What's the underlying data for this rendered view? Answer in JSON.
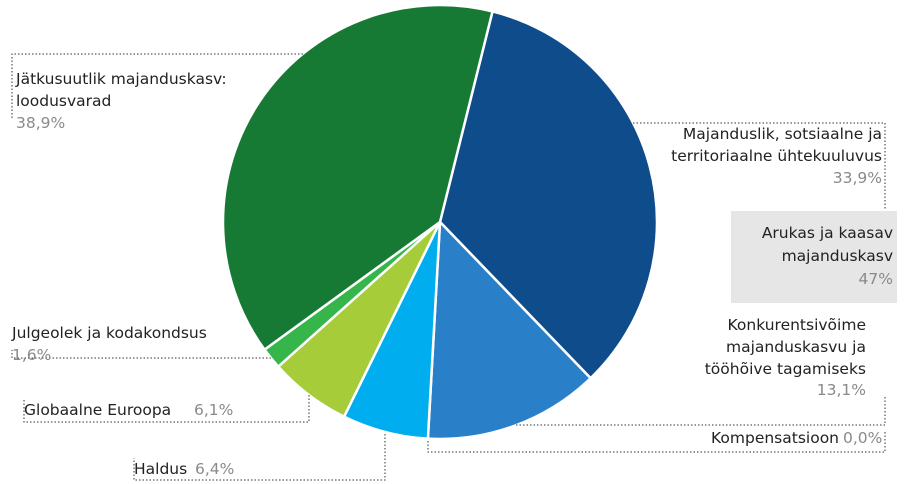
{
  "chart_data": {
    "type": "pie",
    "title": "",
    "slices": [
      {
        "name_lines": [
          "Majanduslik, sotsiaalne ja",
          "territoriaalne ühtekuuluvus"
        ],
        "percent_label": "33,9%",
        "value": 33.9,
        "color": "#0e4c8c"
      },
      {
        "name_lines": [
          "Konkurentsivõime",
          "majanduskasvu ja",
          "tööhõive tagamiseks"
        ],
        "percent_label": "13,1%",
        "value": 13.1,
        "color": "#2980c9"
      },
      {
        "name_lines": [
          "Kompensatsioon"
        ],
        "percent_label": "0,0%",
        "value": 0.0,
        "color": "#2980c9"
      },
      {
        "name_lines": [
          "Haldus"
        ],
        "percent_label": "6,4%",
        "value": 6.4,
        "color": "#00aeef"
      },
      {
        "name_lines": [
          "Globaalne Euroopa"
        ],
        "percent_label": "6,1%",
        "value": 6.1,
        "color": "#a6cc3a"
      },
      {
        "name_lines": [
          "Julgeolek ja kodakondsus"
        ],
        "percent_label": "1,6%",
        "value": 1.6,
        "color": "#35b54a"
      },
      {
        "name_lines": [
          "Jätkusuutlik majanduskasv:",
          "loodusvarad"
        ],
        "percent_label": "38,9%",
        "value": 38.9,
        "color": "#177a34"
      }
    ],
    "group_box": {
      "lines": [
        "Arukas ja kaasav",
        "majanduskasv"
      ],
      "percent_label": "47%",
      "value": 47,
      "background": "#e6e6e6"
    }
  }
}
